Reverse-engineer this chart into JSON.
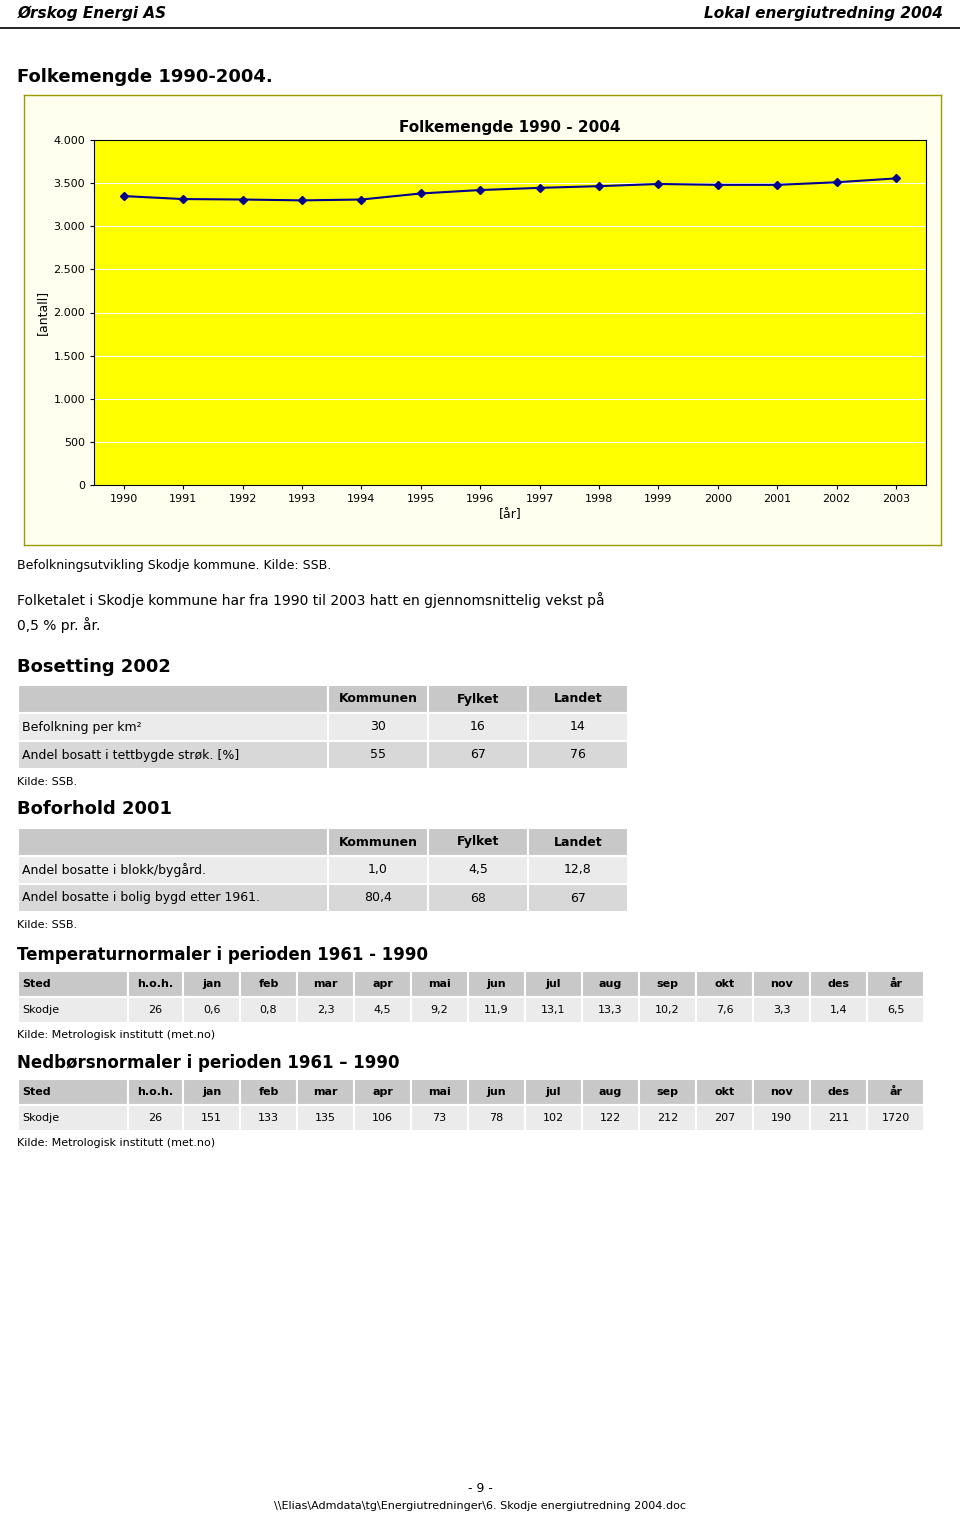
{
  "header_left": "Ørskog Energi AS",
  "header_right": "Lokal energiutredning 2004",
  "section1_title": "Folkemengde 1990-2004.",
  "chart_title": "Folkemengde 1990 - 2004",
  "chart_xlabel": "[år]",
  "chart_ylabel": "[antall]",
  "chart_bg": "#FFFF00",
  "chart_outer_bg": "#FFFFF0",
  "chart_years": [
    1990,
    1991,
    1992,
    1993,
    1994,
    1995,
    1996,
    1997,
    1998,
    1999,
    2000,
    2001,
    2002,
    2003
  ],
  "chart_values": [
    3350,
    3315,
    3310,
    3300,
    3310,
    3380,
    3420,
    3445,
    3465,
    3490,
    3480,
    3480,
    3510,
    3555
  ],
  "chart_ylim": [
    0,
    4000
  ],
  "chart_yticks": [
    0,
    500,
    1000,
    1500,
    2000,
    2500,
    3000,
    3500,
    4000
  ],
  "chart_ytick_labels": [
    "0",
    "500",
    "1.000",
    "1.500",
    "2.000",
    "2.500",
    "3.000",
    "3.500",
    "4.000"
  ],
  "line_color": "#00008B",
  "caption1": "Befolkningsutvikling Skodje kommune. Kilde: SSB.",
  "para1": "Folketalet i Skodje kommune har fra 1990 til 2003 hatt en gjennomsnittelig vekst på\n0,5 % pr. år.",
  "section2_title": "Bosetting 2002",
  "table1_header": [
    "",
    "Kommunen",
    "Fylket",
    "Landet"
  ],
  "table1_rows": [
    [
      "Befolkning per km²",
      "30",
      "16",
      "14"
    ],
    [
      "Andel bosatt i tettbygde strøk. [%]",
      "55",
      "67",
      "76"
    ]
  ],
  "table1_caption": "Kilde: SSB.",
  "section3_title": "Boforhold 2001",
  "table2_header": [
    "",
    "Kommunen",
    "Fylket",
    "Landet"
  ],
  "table2_rows": [
    [
      "Andel bosatte i blokk/bygård.",
      "1,0",
      "4,5",
      "12,8"
    ],
    [
      "Andel bosatte i bolig bygd etter 1961.",
      "80,4",
      "68",
      "67"
    ]
  ],
  "table2_caption": "Kilde: SSB.",
  "section4_title": "Temperaturnormaler i perioden 1961 - 1990",
  "table3_header": [
    "Sted",
    "h.o.h.",
    "jan",
    "feb",
    "mar",
    "apr",
    "mai",
    "jun",
    "jul",
    "aug",
    "sep",
    "okt",
    "nov",
    "des",
    "år"
  ],
  "table3_rows": [
    [
      "Skodje",
      "26",
      "0,6",
      "0,8",
      "2,3",
      "4,5",
      "9,2",
      "11,9",
      "13,1",
      "13,3",
      "10,2",
      "7,6",
      "3,3",
      "1,4",
      "6,5"
    ]
  ],
  "table3_caption": "Kilde: Metrologisk institutt (met.no)",
  "section5_title": "Nedbørsnormaler i perioden 1961 – 1990",
  "table4_header": [
    "Sted",
    "h.o.h.",
    "jan",
    "feb",
    "mar",
    "apr",
    "mai",
    "jun",
    "jul",
    "aug",
    "sep",
    "okt",
    "nov",
    "des",
    "år"
  ],
  "table4_rows": [
    [
      "Skodje",
      "26",
      "151",
      "133",
      "135",
      "106",
      "73",
      "78",
      "102",
      "122",
      "212",
      "207",
      "190",
      "211",
      "1720"
    ]
  ],
  "table4_caption": "Kilde: Metrologisk institutt (met.no)",
  "footer_center": "- 9 -",
  "footer_path": "\\\\Elias\\Admdata\\tg\\Energiutredninger\\6. Skodje energiutredning 2004.doc"
}
